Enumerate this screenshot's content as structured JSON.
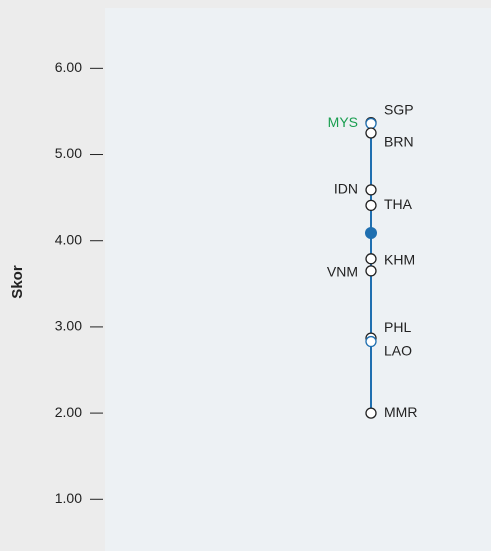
{
  "chart_data": {
    "type": "dot",
    "y_label": "Skor",
    "ylim": [
      0.4,
      6.7
    ],
    "yticks": [
      {
        "value": 1,
        "label": "1.00"
      },
      {
        "value": 2,
        "label": "2.00"
      },
      {
        "value": 3,
        "label": "3.00"
      },
      {
        "value": 4,
        "label": "4.00"
      },
      {
        "value": 5,
        "label": "5.00"
      },
      {
        "value": 6,
        "label": "6.00"
      }
    ],
    "line_color": "#1f6fb0",
    "mean": 4.09,
    "points": [
      {
        "name": "SGP",
        "value": 5.37,
        "label_color": "#222222",
        "stroke": "#222222"
      },
      {
        "name": "MYS",
        "value": 5.36,
        "label_color": "#1a9e50",
        "stroke": "#1f6fb0"
      },
      {
        "name": "BRN",
        "value": 5.25,
        "label_color": "#222222",
        "stroke": "#222222"
      },
      {
        "name": "IDN",
        "value": 4.59,
        "label_color": "#222222",
        "stroke": "#222222"
      },
      {
        "name": "THA",
        "value": 4.41,
        "label_color": "#222222",
        "stroke": "#222222"
      },
      {
        "name": "KHM",
        "value": 3.79,
        "label_color": "#222222",
        "stroke": "#222222"
      },
      {
        "name": "VNM",
        "value": 3.65,
        "label_color": "#222222",
        "stroke": "#222222"
      },
      {
        "name": "PHL",
        "value": 2.87,
        "label_color": "#222222",
        "stroke": "#222222"
      },
      {
        "name": "LAO",
        "value": 2.83,
        "label_color": "#222222",
        "stroke": "#1f6fb0"
      },
      {
        "name": "MMR",
        "value": 2.0,
        "label_color": "#222222",
        "stroke": "#222222"
      }
    ]
  }
}
